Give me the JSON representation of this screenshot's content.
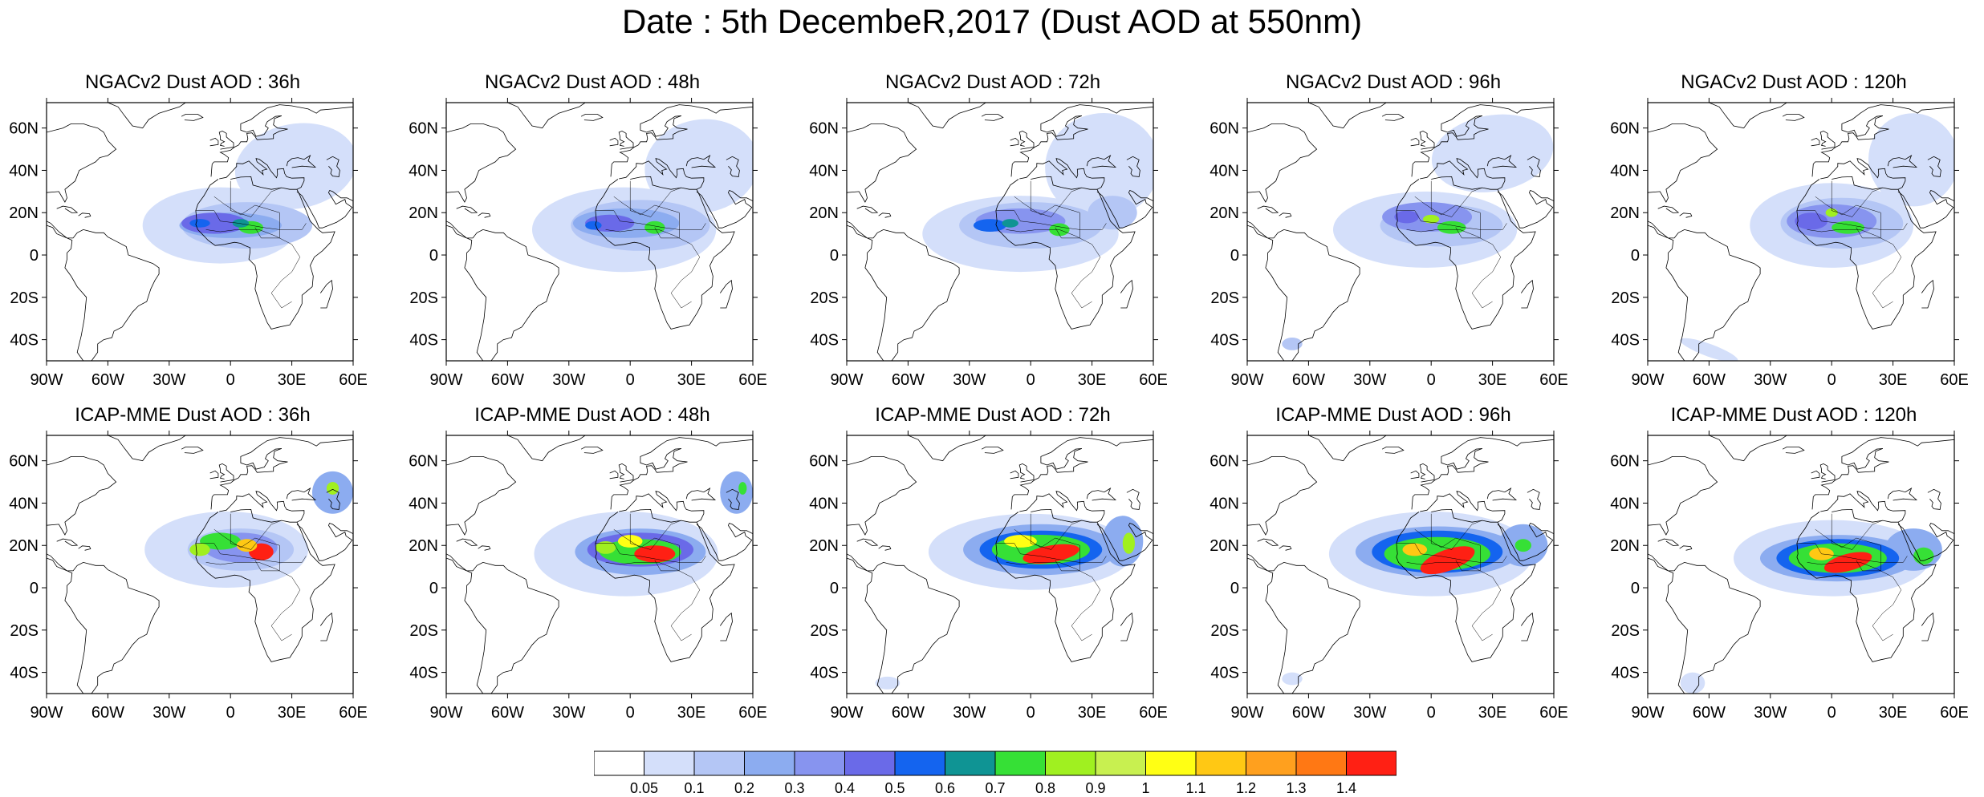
{
  "title": "Date : 5th DecembeR,2017 (Dust AOD at 550nm)",
  "map_axes": {
    "lon_ticks": [
      "90W",
      "60W",
      "30W",
      "0",
      "30E",
      "60E"
    ],
    "lat_ticks": [
      "60N",
      "40N",
      "20N",
      "0",
      "20S",
      "40S"
    ],
    "lon_range": [
      -90,
      60
    ],
    "lat_range": [
      -50,
      72
    ],
    "lon_tick_values": [
      -90,
      -60,
      -30,
      0,
      30,
      60
    ],
    "lat_tick_values": [
      60,
      40,
      20,
      0,
      -20,
      -40
    ]
  },
  "colorbar": {
    "colors": [
      "#ffffff",
      "#d4dffa",
      "#b4c6f5",
      "#8cacf0",
      "#8794ef",
      "#6a6ae8",
      "#1464ef",
      "#0f9494",
      "#36e036",
      "#a0f020",
      "#c8f050",
      "#ffff14",
      "#ffc814",
      "#ffa01e",
      "#ff7814",
      "#ff2014"
    ],
    "labels": [
      "0.05",
      "0.1",
      "0.2",
      "0.3",
      "0.4",
      "0.5",
      "0.6",
      "0.7",
      "0.8",
      "0.9",
      "1",
      "1.1",
      "1.2",
      "1.3",
      "1.4"
    ],
    "quantity": "Dust AOD at 550nm"
  },
  "panels": [
    {
      "title": "NGACv2 Dust AOD : 36h",
      "model": "NGACv2",
      "forecast_hour": 36
    },
    {
      "title": "NGACv2 Dust AOD : 48h",
      "model": "NGACv2",
      "forecast_hour": 48
    },
    {
      "title": "NGACv2 Dust AOD : 72h",
      "model": "NGACv2",
      "forecast_hour": 72
    },
    {
      "title": "NGACv2 Dust AOD : 96h",
      "model": "NGACv2",
      "forecast_hour": 96
    },
    {
      "title": "NGACv2 Dust AOD : 120h",
      "model": "NGACv2",
      "forecast_hour": 120
    },
    {
      "title": "ICAP-MME Dust AOD : 36h",
      "model": "ICAP-MME",
      "forecast_hour": 36
    },
    {
      "title": "ICAP-MME Dust AOD : 48h",
      "model": "ICAP-MME",
      "forecast_hour": 48
    },
    {
      "title": "ICAP-MME Dust AOD : 72h",
      "model": "ICAP-MME",
      "forecast_hour": 72
    },
    {
      "title": "ICAP-MME Dust AOD : 96h",
      "model": "ICAP-MME",
      "forecast_hour": 96
    },
    {
      "title": "ICAP-MME Dust AOD : 120h",
      "model": "ICAP-MME",
      "forecast_hour": 120
    }
  ]
}
